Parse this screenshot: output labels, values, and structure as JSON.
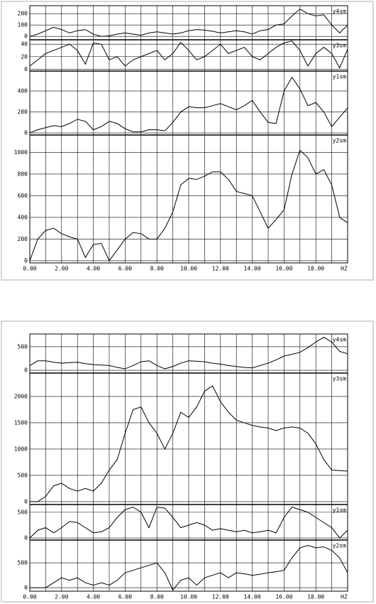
{
  "chart_data": [
    {
      "type": "line",
      "color": "#000000",
      "grid": true,
      "xlabel": "HZ",
      "xlim": [
        0,
        20
      ],
      "xticks": [
        {
          "value": 0,
          "label": "0.00"
        },
        {
          "value": 2,
          "label": "2.00"
        },
        {
          "value": 4,
          "label": "4.00"
        },
        {
          "value": 6,
          "label": "6.00"
        },
        {
          "value": 8,
          "label": "8.00"
        },
        {
          "value": 10,
          "label": "10.00"
        },
        {
          "value": 12,
          "label": "12.00"
        },
        {
          "value": 14,
          "label": "14.00"
        },
        {
          "value": 16,
          "label": "16.00"
        },
        {
          "value": 18,
          "label": "18.00"
        }
      ],
      "xminor": [
        1,
        3,
        5,
        7,
        9,
        11,
        13,
        15,
        17,
        19
      ],
      "x": [
        0,
        0.5,
        1,
        1.5,
        2,
        2.5,
        3,
        3.5,
        4,
        4.5,
        5,
        5.5,
        6,
        6.5,
        7,
        7.5,
        8,
        8.5,
        9,
        9.5,
        10,
        10.5,
        11,
        11.5,
        12,
        12.5,
        13,
        13.5,
        14,
        14.5,
        15,
        15.5,
        16,
        16.5,
        17,
        17.5,
        18,
        18.5,
        19,
        19.5,
        20
      ],
      "series": [
        {
          "name": "y4sm",
          "ylim": [
            -30,
            270
          ],
          "yticks": [
            0,
            100,
            200
          ],
          "values": [
            0,
            20,
            50,
            80,
            60,
            30,
            50,
            60,
            20,
            0,
            5,
            20,
            30,
            20,
            10,
            30,
            40,
            30,
            20,
            30,
            50,
            60,
            55,
            45,
            30,
            40,
            50,
            40,
            20,
            50,
            60,
            100,
            110,
            180,
            240,
            200,
            180,
            190,
            100,
            30,
            100
          ]
        },
        {
          "name": "y3sm",
          "ylim": [
            -3,
            47
          ],
          "yticks": [
            0,
            20,
            40
          ],
          "values": [
            5,
            15,
            25,
            30,
            35,
            40,
            30,
            8,
            42,
            40,
            15,
            20,
            5,
            15,
            20,
            25,
            30,
            15,
            25,
            43,
            30,
            15,
            20,
            30,
            40,
            25,
            30,
            35,
            20,
            15,
            25,
            35,
            42,
            45,
            30,
            5,
            25,
            35,
            25,
            2,
            32
          ]
        },
        {
          "name": "y1sm",
          "ylim": [
            -20,
            590
          ],
          "yticks": [
            0,
            200,
            400
          ],
          "values": [
            0,
            30,
            50,
            70,
            60,
            90,
            130,
            110,
            30,
            60,
            110,
            90,
            40,
            10,
            10,
            30,
            30,
            20,
            100,
            200,
            250,
            240,
            240,
            260,
            280,
            250,
            220,
            260,
            310,
            200,
            100,
            90,
            400,
            530,
            420,
            260,
            290,
            200,
            60,
            150,
            240
          ]
        },
        {
          "name": "y2sm",
          "ylim": [
            -20,
            1160
          ],
          "yticks": [
            0,
            200,
            400,
            600,
            800,
            1000
          ],
          "values": [
            0,
            200,
            280,
            300,
            250,
            220,
            200,
            30,
            150,
            160,
            0,
            100,
            200,
            260,
            250,
            200,
            200,
            300,
            450,
            700,
            760,
            750,
            780,
            820,
            820,
            750,
            640,
            620,
            600,
            450,
            300,
            380,
            470,
            800,
            1020,
            950,
            800,
            840,
            700,
            400,
            350
          ]
        }
      ]
    },
    {
      "type": "line",
      "color": "#000000",
      "grid": true,
      "xlabel": "HZ",
      "xlim": [
        0,
        20
      ],
      "xticks": [
        {
          "value": 0,
          "label": "0.00"
        },
        {
          "value": 2,
          "label": "2.00"
        },
        {
          "value": 4,
          "label": "4.00"
        },
        {
          "value": 6,
          "label": "6.00"
        },
        {
          "value": 8,
          "label": "8.00"
        },
        {
          "value": 10,
          "label": "10.00"
        },
        {
          "value": 12,
          "label": "12.00"
        },
        {
          "value": 14,
          "label": "14.00"
        },
        {
          "value": 16,
          "label": "16.00"
        },
        {
          "value": 18,
          "label": "18.00"
        }
      ],
      "xminor": [
        1,
        3,
        5,
        7,
        9,
        11,
        13,
        15,
        17,
        19
      ],
      "x": [
        0,
        0.5,
        1,
        1.5,
        2,
        2.5,
        3,
        3.5,
        4,
        4.5,
        5,
        5.5,
        6,
        6.5,
        7,
        7.5,
        8,
        8.5,
        9,
        9.5,
        10,
        10.5,
        11,
        11.5,
        12,
        12.5,
        13,
        13.5,
        14,
        14.5,
        15,
        15.5,
        16,
        16.5,
        17,
        17.5,
        18,
        18.5,
        19,
        19.5,
        20
      ],
      "series": [
        {
          "name": "y4sm",
          "ylim": [
            -60,
            770
          ],
          "yticks": [
            0,
            500
          ],
          "values": [
            100,
            200,
            200,
            170,
            150,
            160,
            170,
            140,
            120,
            110,
            100,
            60,
            30,
            100,
            180,
            200,
            100,
            30,
            80,
            150,
            200,
            190,
            180,
            150,
            130,
            100,
            80,
            60,
            50,
            100,
            150,
            220,
            300,
            340,
            380,
            480,
            600,
            700,
            600,
            400,
            350
          ]
        },
        {
          "name": "y3sm",
          "ylim": [
            -55,
            2445
          ],
          "yticks": [
            0,
            500,
            1000,
            1500,
            2000
          ],
          "values": [
            0,
            0,
            100,
            300,
            350,
            250,
            200,
            250,
            200,
            350,
            600,
            800,
            1300,
            1750,
            1800,
            1500,
            1300,
            1000,
            1300,
            1700,
            1600,
            1800,
            2100,
            2200,
            1900,
            1700,
            1550,
            1500,
            1450,
            1420,
            1400,
            1350,
            1400,
            1420,
            1400,
            1300,
            1100,
            800,
            600,
            590,
            580
          ]
        },
        {
          "name": "y1sm",
          "ylim": [
            -40,
            650
          ],
          "yticks": [
            0,
            500
          ],
          "values": [
            0,
            150,
            200,
            100,
            200,
            320,
            300,
            200,
            100,
            120,
            200,
            400,
            550,
            600,
            500,
            200,
            600,
            580,
            400,
            200,
            250,
            300,
            250,
            150,
            180,
            150,
            120,
            150,
            100,
            120,
            150,
            100,
            400,
            600,
            550,
            500,
            400,
            300,
            200,
            0,
            150
          ]
        },
        {
          "name": "y2sm",
          "ylim": [
            -70,
            957
          ],
          "yticks": [
            0,
            500
          ],
          "values": [
            0,
            0,
            0,
            100,
            200,
            150,
            200,
            100,
            50,
            100,
            50,
            150,
            300,
            350,
            400,
            450,
            500,
            300,
            -50,
            150,
            200,
            50,
            200,
            250,
            300,
            200,
            300,
            280,
            250,
            270,
            300,
            320,
            350,
            600,
            800,
            850,
            800,
            820,
            750,
            600,
            300
          ]
        }
      ]
    }
  ]
}
